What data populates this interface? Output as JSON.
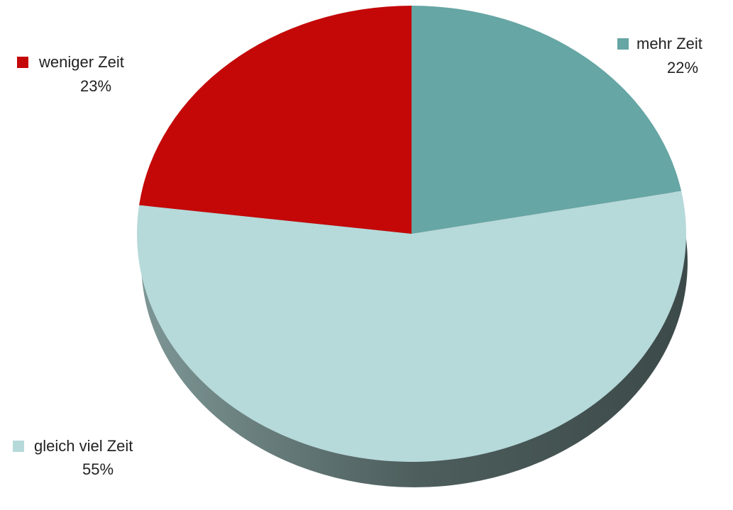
{
  "chart_data": {
    "type": "pie",
    "categories": [
      "mehr Zeit",
      "gleich viel Zeit",
      "weniger Zeit"
    ],
    "values": [
      22,
      55,
      23
    ],
    "value_labels": [
      "22%",
      "55%",
      "23%"
    ],
    "colors": [
      "#66a6a4",
      "#b6d9da",
      "#c40808"
    ]
  }
}
